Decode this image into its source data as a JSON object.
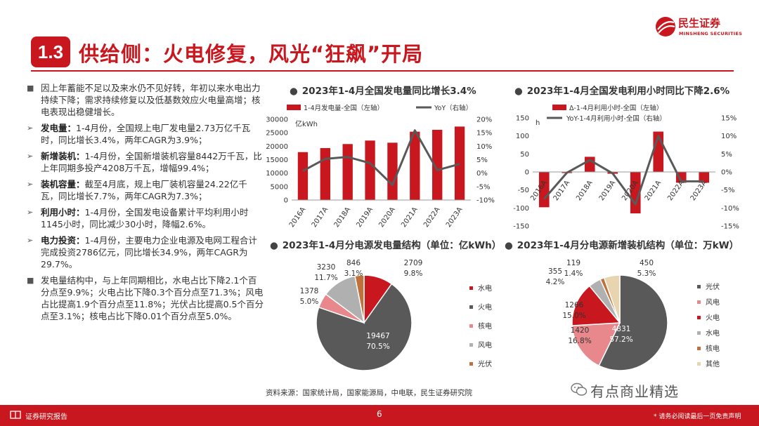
{
  "header": {
    "section_num": "1.3",
    "title": "供给侧：火电修复，风光“狂飙”开局",
    "logo_cn": "民生证券",
    "logo_en": "MINSHENG SECURITIES"
  },
  "bullets": [
    {
      "marker": "■",
      "label": "",
      "text": "因上年蓄能不足以及来水仍不见好转，年初以来水电出力持续下降；需求持续修复以及低基数效应火电量高增；核电表现出稳健增长。"
    },
    {
      "marker": "➢",
      "label": "发电量：",
      "text": "1-4月份，全国规上电厂发电量2.73万亿千瓦时，同比增长3.4%，两年CAGR为3.9%；"
    },
    {
      "marker": "➢",
      "label": "新增装机：",
      "text": "1-4月份，全国新增装机容量8442万千瓦，比上年同期多投产4208万千瓦，增幅99.4%；"
    },
    {
      "marker": "➢",
      "label": "装机容量：",
      "text": "截至4月底，规上电厂装机容量24.22亿千瓦，同比增长7.7%，两年CAGR为7.3%；"
    },
    {
      "marker": "➢",
      "label": "利用小时：",
      "text": "1-4月份，全国发电设备累计平均利用小时1145小时，同比减少30小时，降幅2.6%。"
    },
    {
      "marker": "➢",
      "label": "电力投资：",
      "text": "1-4月份，主要电力企业电源及电网工程合计完成投资2786亿元，同比增长34.9%，两年CAGR为29.7%。"
    },
    {
      "marker": "■",
      "label": "",
      "text": "发电量结构中，与上年同期相比，水电占比下降2.1个百分点至9.9%；火电占比下降0.3个百分点至71.3%；风电占比提高1.9个百分点至11.8%；光伏占比提高0.5个百分点至3.1%；核电占比下降0.01个百分点至5.0%。"
    }
  ],
  "source": "资料来源：国家统计局，国家能源局，中电联，民生证券研究院",
  "watermark": "有点商业精选",
  "footer": {
    "label": "证券研究报告",
    "page": "6",
    "disclaimer": "* 请务必阅读最后一页免责声明"
  },
  "colors": {
    "accent": "#c8171e",
    "line": "#595959",
    "dark_slice": "#595959",
    "pink": "#e8888c",
    "gray": "#b0b0b0",
    "brown": "#c0703a",
    "beige": "#e8d5b0"
  },
  "chart_data": [
    {
      "type": "bar",
      "title": "2023年1-4月全国发电量同比增长3.4%",
      "ylabel": "亿kWh",
      "categories": [
        "2016A",
        "2017A",
        "2018A",
        "2019A",
        "2020A",
        "2021A",
        "2022A",
        "2023A"
      ],
      "series": [
        {
          "name": "1-4月发电量-全国（左轴）",
          "type": "bar",
          "axis": "left",
          "values": [
            17800,
            19300,
            20800,
            22100,
            21300,
            25400,
            26100,
            27300
          ]
        },
        {
          "name": "YoY（右轴）",
          "type": "line",
          "axis": "right",
          "values": [
            0.8,
            5.3,
            6.0,
            3.7,
            -4.4,
            15.9,
            1.1,
            3.4
          ]
        }
      ],
      "ylim": [
        0,
        30000
      ],
      "yticks": [
        "0",
        "5000",
        "10000",
        "15000",
        "20000",
        "25000",
        "30000"
      ],
      "y2lim": [
        -10,
        20
      ],
      "y2ticks": [
        "-10%",
        "-5%",
        "0%",
        "5%",
        "10%",
        "15%",
        "20%"
      ]
    },
    {
      "type": "bar",
      "title": "2023年1-4月全国发电利用小时同比下降2.6%",
      "ylabel": "h",
      "categories": [
        "2016A",
        "2017A",
        "2018A",
        "2019A",
        "2020A",
        "2021A",
        "2022A",
        "2023A"
      ],
      "series": [
        {
          "name": "Δ-1-4月利用小时-全国（左轴）",
          "type": "bar",
          "axis": "left",
          "values": [
            -98,
            -3,
            42,
            -5,
            -115,
            112,
            -30,
            -30
          ]
        },
        {
          "name": "YoY-1-4月利用小时-全国（右轴）",
          "type": "line",
          "axis": "right",
          "values": [
            -7.5,
            -0.2,
            3.3,
            -0.4,
            -9.0,
            10.0,
            -2.6,
            -2.6
          ]
        }
      ],
      "ylim": [
        -150,
        150
      ],
      "yticks": [
        "-150",
        "-100",
        "-50",
        "0",
        "50",
        "100",
        "150"
      ],
      "y2lim": [
        -15,
        15
      ],
      "y2ticks": [
        "-15%",
        "-10%",
        "-5%",
        "0%",
        "5%",
        "10%",
        "15%"
      ]
    },
    {
      "type": "pie",
      "title": "2023年1-4月分电源发电量结构（单位：亿kWh）",
      "legend": [
        "水电",
        "火电",
        "核电",
        "风电",
        "光伏"
      ],
      "slices": [
        {
          "name": "水电",
          "value": 2709,
          "pct": "9.8%",
          "color": "#c8171e"
        },
        {
          "name": "火电",
          "value": 19467,
          "pct": "70.5%",
          "color": "#595959"
        },
        {
          "name": "核电",
          "value": 1378,
          "pct": "5.0%",
          "color": "#e8888c"
        },
        {
          "name": "风电",
          "value": 3230,
          "pct": "11.7%",
          "color": "#b0b0b0"
        },
        {
          "name": "光伏",
          "value": 846,
          "pct": "3.1%",
          "color": "#c0703a"
        }
      ]
    },
    {
      "type": "pie",
      "title": "2023年1-4月分电源新增装机结构（单位：万kW）",
      "legend": [
        "光伏",
        "风电",
        "火电",
        "水电",
        "核电",
        "其他"
      ],
      "slices": [
        {
          "name": "光伏",
          "value": 4831,
          "pct": "57.2%",
          "color": "#595959"
        },
        {
          "name": "风电",
          "value": 1420,
          "pct": "16.8%",
          "color": "#e8888c"
        },
        {
          "name": "火电",
          "value": 1266,
          "pct": "15.0%",
          "color": "#c8171e"
        },
        {
          "name": "水电",
          "value": 355,
          "pct": "4.2%",
          "color": "#b0b0b0"
        },
        {
          "name": "核电",
          "value": 119,
          "pct": "1.4%",
          "color": "#c0703a"
        },
        {
          "name": "其他",
          "value": 450,
          "pct": "5.3%",
          "color": "#e8d5b0"
        }
      ]
    }
  ]
}
